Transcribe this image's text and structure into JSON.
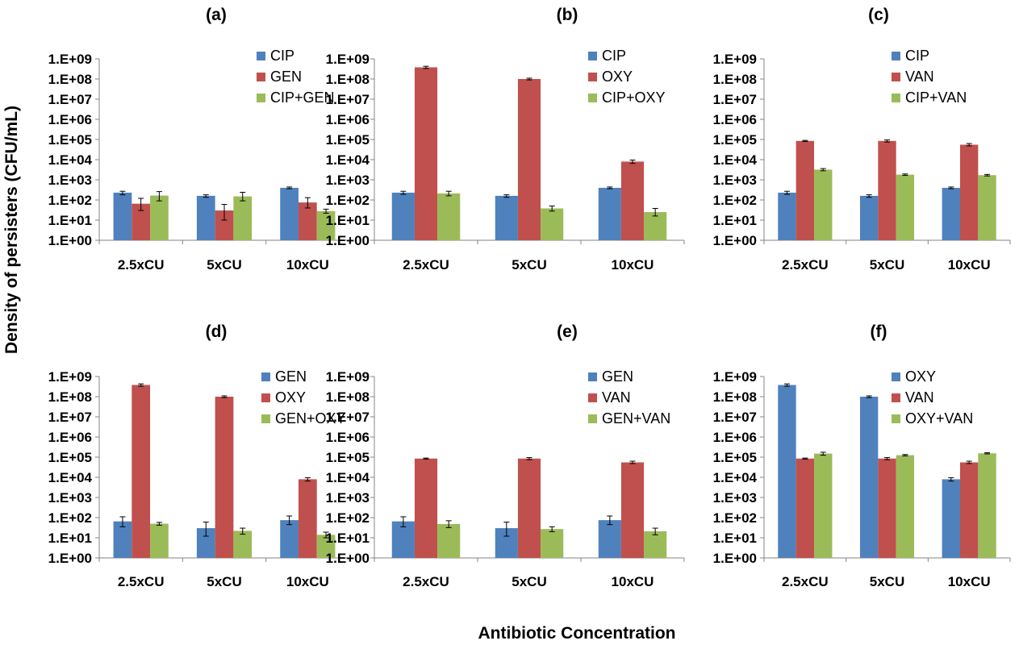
{
  "y_axis_title": "Density of persisters (CFU/mL)",
  "x_axis_title": "Antibiotic Concentration",
  "colors": {
    "series1": "#4F81BD",
    "series2": "#C0504D",
    "series3": "#9BBB59",
    "axis": "#868686",
    "text": "#000000"
  },
  "chart_data": [
    {
      "type": "bar",
      "title": "(a)",
      "yscale": "log",
      "ylim": [
        1,
        1000000000
      ],
      "grid": false,
      "legend_position": "top-right",
      "categories": [
        "2.5xCU",
        "5xCU",
        "10xCU"
      ],
      "y_tick_labels": [
        "1.E+00",
        "1.E+01",
        "1.E+02",
        "1.E+03",
        "1.E+04",
        "1.E+05",
        "1.E+06",
        "1.E+07",
        "1.E+08",
        "1.E+09"
      ],
      "series": [
        {
          "name": "CIP",
          "values": [
            230,
            160,
            400
          ],
          "errors_low": [
            180,
            135,
            360
          ],
          "errors_high": [
            270,
            180,
            440
          ]
        },
        {
          "name": "GEN",
          "values": [
            65,
            30,
            75
          ],
          "errors_low": [
            30,
            10,
            40
          ],
          "errors_high": [
            120,
            60,
            130
          ]
        },
        {
          "name": "CIP+GEN",
          "values": [
            165,
            150,
            28
          ],
          "errors_low": [
            90,
            90,
            22
          ],
          "errors_high": [
            260,
            240,
            35
          ]
        }
      ]
    },
    {
      "type": "bar",
      "title": "(b)",
      "yscale": "log",
      "ylim": [
        1,
        1000000000
      ],
      "grid": false,
      "legend_position": "top-right",
      "categories": [
        "2.5xCU",
        "5xCU",
        "10xCU"
      ],
      "y_tick_labels": [
        "1.E+00",
        "1.E+01",
        "1.E+02",
        "1.E+03",
        "1.E+04",
        "1.E+05",
        "1.E+06",
        "1.E+07",
        "1.E+08",
        "1.E+09"
      ],
      "series": [
        {
          "name": "CIP",
          "values": [
            230,
            160,
            400
          ],
          "errors_low": [
            190,
            135,
            360
          ],
          "errors_high": [
            270,
            180,
            440
          ]
        },
        {
          "name": "OXY",
          "values": [
            380000000,
            100000000,
            8000
          ],
          "errors_low": [
            330000000,
            90000000,
            6500
          ],
          "errors_high": [
            430000000,
            110000000,
            9500
          ]
        },
        {
          "name": "CIP+OXY",
          "values": [
            210,
            38,
            25
          ],
          "errors_low": [
            160,
            28,
            16
          ],
          "errors_high": [
            270,
            50,
            38
          ]
        }
      ]
    },
    {
      "type": "bar",
      "title": "(c)",
      "yscale": "log",
      "ylim": [
        1,
        1000000000
      ],
      "grid": false,
      "legend_position": "top-right",
      "categories": [
        "2.5xCU",
        "5xCU",
        "10xCU"
      ],
      "y_tick_labels": [
        "1.E+00",
        "1.E+01",
        "1.E+02",
        "1.E+03",
        "1.E+04",
        "1.E+05",
        "1.E+06",
        "1.E+07",
        "1.E+08",
        "1.E+09"
      ],
      "series": [
        {
          "name": "CIP",
          "values": [
            230,
            160,
            400
          ],
          "errors_low": [
            190,
            135,
            360
          ],
          "errors_high": [
            270,
            180,
            440
          ]
        },
        {
          "name": "VAN",
          "values": [
            85000,
            85000,
            55000
          ],
          "errors_low": [
            80000,
            75000,
            48000
          ],
          "errors_high": [
            90000,
            95000,
            63000
          ]
        },
        {
          "name": "CIP+VAN",
          "values": [
            3200,
            1800,
            1700
          ],
          "errors_low": [
            2800,
            1650,
            1550
          ],
          "errors_high": [
            3600,
            1950,
            1850
          ]
        }
      ]
    },
    {
      "type": "bar",
      "title": "(d)",
      "yscale": "log",
      "ylim": [
        1,
        1000000000
      ],
      "grid": false,
      "legend_position": "top-right",
      "categories": [
        "2.5xCU",
        "5xCU",
        "10xCU"
      ],
      "y_tick_labels": [
        "1.E+00",
        "1.E+01",
        "1.E+02",
        "1.E+03",
        "1.E+04",
        "1.E+05",
        "1.E+06",
        "1.E+07",
        "1.E+08",
        "1.E+09"
      ],
      "series": [
        {
          "name": "GEN",
          "values": [
            65,
            30,
            75
          ],
          "errors_low": [
            35,
            12,
            45
          ],
          "errors_high": [
            110,
            60,
            120
          ]
        },
        {
          "name": "OXY",
          "values": [
            380000000,
            100000000,
            8000
          ],
          "errors_low": [
            330000000,
            90000000,
            6500
          ],
          "errors_high": [
            430000000,
            110000000,
            9500
          ]
        },
        {
          "name": "GEN+OXY",
          "values": [
            50,
            22,
            14
          ],
          "errors_low": [
            42,
            15,
            10
          ],
          "errors_high": [
            58,
            30,
            19
          ]
        }
      ]
    },
    {
      "type": "bar",
      "title": "(e)",
      "yscale": "log",
      "ylim": [
        1,
        1000000000
      ],
      "grid": false,
      "legend_position": "top-right",
      "categories": [
        "2.5xCU",
        "5xCU",
        "10xCU"
      ],
      "y_tick_labels": [
        "1.E+00",
        "1.E+01",
        "1.E+02",
        "1.E+03",
        "1.E+04",
        "1.E+05",
        "1.E+06",
        "1.E+07",
        "1.E+08",
        "1.E+09"
      ],
      "series": [
        {
          "name": "GEN",
          "values": [
            65,
            30,
            75
          ],
          "errors_low": [
            35,
            12,
            45
          ],
          "errors_high": [
            110,
            60,
            120
          ]
        },
        {
          "name": "VAN",
          "values": [
            85000,
            85000,
            55000
          ],
          "errors_low": [
            80000,
            75000,
            48000
          ],
          "errors_high": [
            90000,
            95000,
            63000
          ]
        },
        {
          "name": "GEN+VAN",
          "values": [
            48,
            27,
            21
          ],
          "errors_low": [
            32,
            20,
            14
          ],
          "errors_high": [
            70,
            35,
            30
          ]
        }
      ]
    },
    {
      "type": "bar",
      "title": "(f)",
      "yscale": "log",
      "ylim": [
        1,
        1000000000
      ],
      "grid": false,
      "legend_position": "top-right",
      "categories": [
        "2.5xCU",
        "5xCU",
        "10xCU"
      ],
      "y_tick_labels": [
        "1.E+00",
        "1.E+01",
        "1.E+02",
        "1.E+03",
        "1.E+04",
        "1.E+05",
        "1.E+06",
        "1.E+07",
        "1.E+08",
        "1.E+09"
      ],
      "series": [
        {
          "name": "OXY",
          "values": [
            380000000,
            100000000,
            8000
          ],
          "errors_low": [
            330000000,
            90000000,
            6500
          ],
          "errors_high": [
            430000000,
            110000000,
            9500
          ]
        },
        {
          "name": "VAN",
          "values": [
            85000,
            85000,
            55000
          ],
          "errors_low": [
            80000,
            75000,
            48000
          ],
          "errors_high": [
            90000,
            95000,
            63000
          ]
        },
        {
          "name": "OXY+VAN",
          "values": [
            150000,
            125000,
            155000
          ],
          "errors_low": [
            125000,
            115000,
            145000
          ],
          "errors_high": [
            175000,
            135000,
            165000
          ]
        }
      ]
    }
  ]
}
